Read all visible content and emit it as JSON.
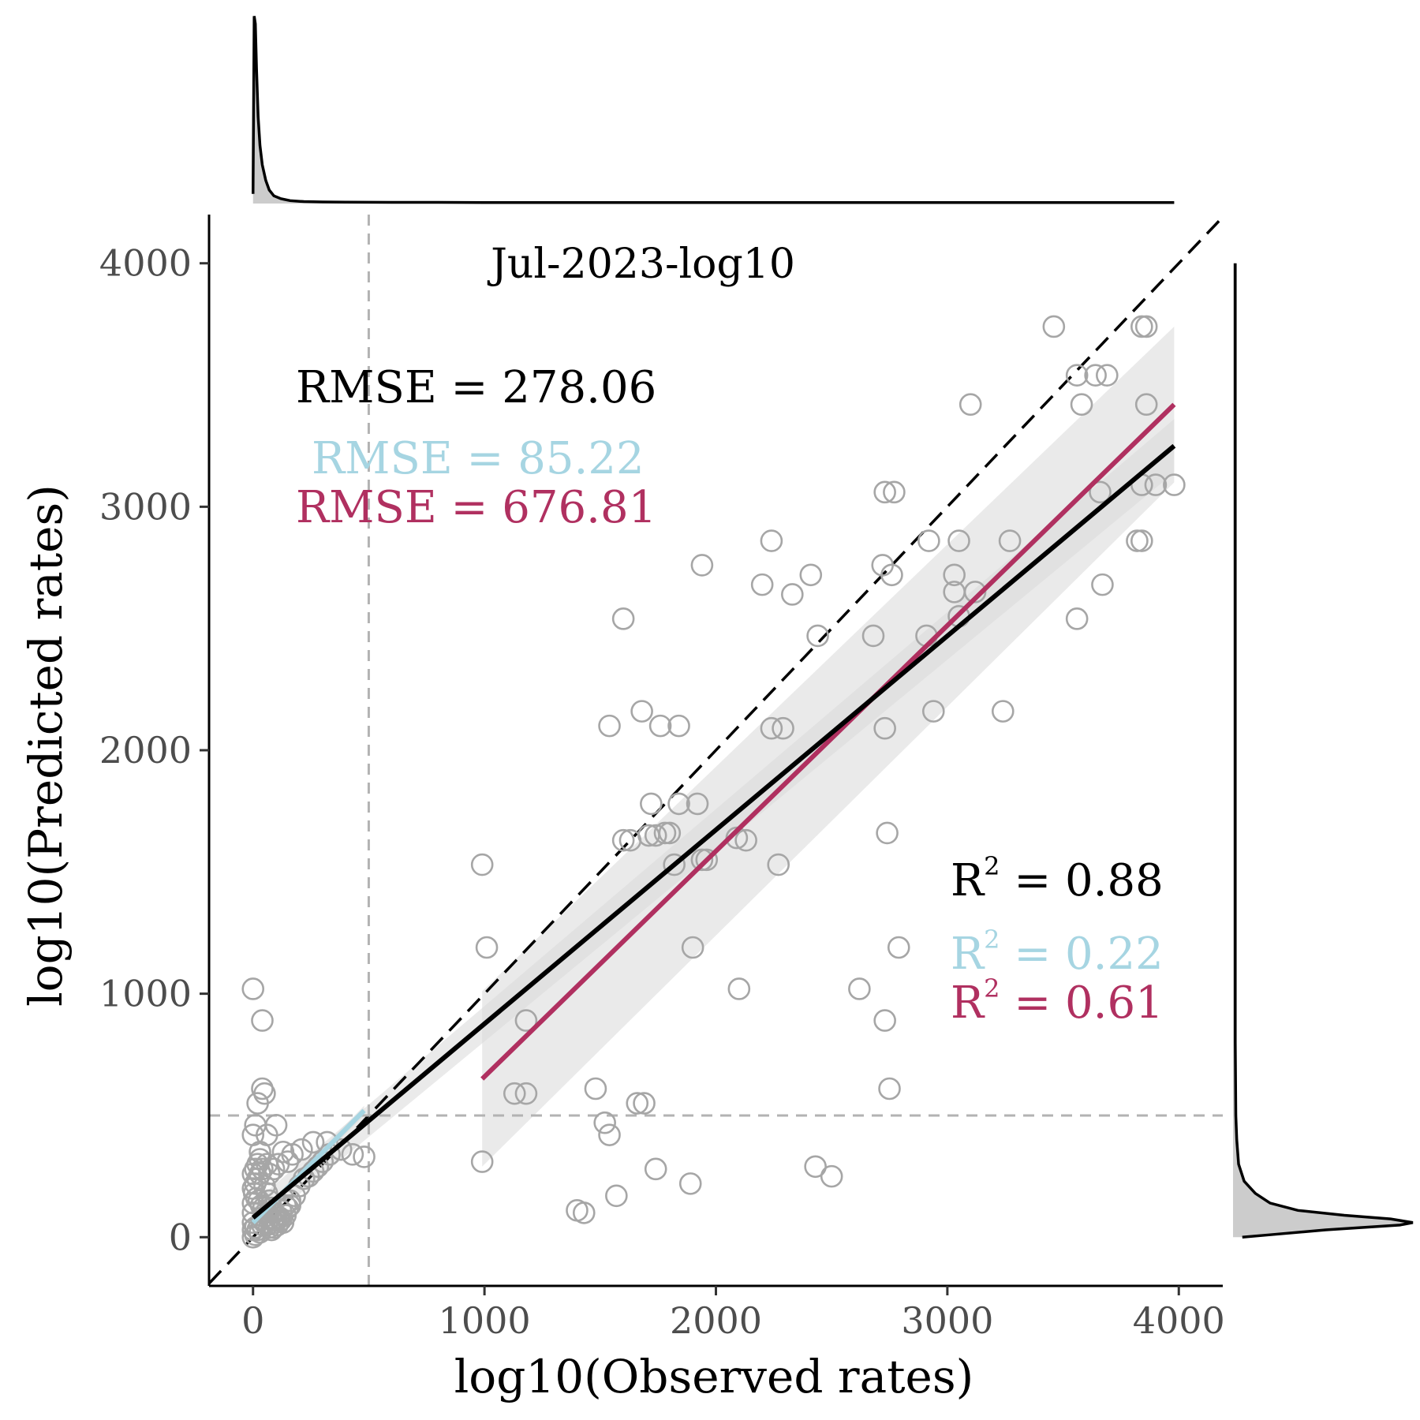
{
  "chart_data": {
    "type": "scatter",
    "title": "Jul-2023-log10",
    "xlabel": "log10(Observed rates)",
    "ylabel": "log10(Predicted rates)",
    "xlim": [
      -190,
      4190
    ],
    "ylim": [
      -200,
      4200
    ],
    "xticks": [
      0,
      1000,
      2000,
      3000,
      4000
    ],
    "yticks": [
      0,
      1000,
      2000,
      3000,
      4000
    ],
    "grid": false,
    "threshold": 500,
    "colors": {
      "points": "#a6a6a6",
      "overall": "#000000",
      "low": "#a6d5e2",
      "high": "#b03060",
      "band": "#d9d9d9",
      "density_fill": "#cccccc"
    },
    "stats": {
      "rmse_overall": "RMSE = 278.06",
      "rmse_low": "RMSE = 85.22",
      "rmse_high": "RMSE = 676.81",
      "r2_label": "R",
      "r2_exp": "2",
      "r2_overall": " = 0.88",
      "r2_low": " = 0.22",
      "r2_high": " = 0.61"
    },
    "fits": {
      "overall": {
        "x": [
          0,
          3980
        ],
        "y": [
          80,
          3250
        ]
      },
      "low": {
        "x": [
          0,
          480
        ],
        "y": [
          60,
          520
        ]
      },
      "high": {
        "x": [
          990,
          3980
        ],
        "y": [
          650,
          3420
        ]
      }
    },
    "points": [
      [
        3460,
        3740
      ],
      [
        3840,
        3740
      ],
      [
        3860,
        3740
      ],
      [
        3560,
        3540
      ],
      [
        3640,
        3540
      ],
      [
        3690,
        3540
      ],
      [
        3100,
        3420
      ],
      [
        3580,
        3420
      ],
      [
        3860,
        3420
      ],
      [
        2730,
        3060
      ],
      [
        2770,
        3060
      ],
      [
        3660,
        3060
      ],
      [
        3840,
        3090
      ],
      [
        3900,
        3090
      ],
      [
        3980,
        3090
      ],
      [
        1940,
        2760
      ],
      [
        2720,
        2760
      ],
      [
        2760,
        2720
      ],
      [
        2240,
        2860
      ],
      [
        2920,
        2860
      ],
      [
        3050,
        2860
      ],
      [
        3270,
        2860
      ],
      [
        3820,
        2860
      ],
      [
        3840,
        2860
      ],
      [
        2200,
        2680
      ],
      [
        2330,
        2640
      ],
      [
        2410,
        2720
      ],
      [
        3030,
        2720
      ],
      [
        3030,
        2650
      ],
      [
        3120,
        2650
      ],
      [
        3670,
        2680
      ],
      [
        1600,
        2540
      ],
      [
        3050,
        2550
      ],
      [
        3560,
        2540
      ],
      [
        2440,
        2470
      ],
      [
        2680,
        2470
      ],
      [
        2910,
        2470
      ],
      [
        1680,
        2160
      ],
      [
        2940,
        2160
      ],
      [
        3240,
        2160
      ],
      [
        1540,
        2100
      ],
      [
        1760,
        2100
      ],
      [
        1840,
        2100
      ],
      [
        2240,
        2090
      ],
      [
        2290,
        2090
      ],
      [
        2730,
        2090
      ],
      [
        1720,
        1780
      ],
      [
        1840,
        1780
      ],
      [
        1920,
        1780
      ],
      [
        1600,
        1630
      ],
      [
        1630,
        1630
      ],
      [
        1710,
        1650
      ],
      [
        1740,
        1650
      ],
      [
        1780,
        1660
      ],
      [
        1800,
        1660
      ],
      [
        2090,
        1640
      ],
      [
        2130,
        1630
      ],
      [
        2740,
        1660
      ],
      [
        1820,
        1530
      ],
      [
        1940,
        1550
      ],
      [
        1960,
        1550
      ],
      [
        2270,
        1530
      ],
      [
        990,
        1530
      ],
      [
        1010,
        1190
      ],
      [
        1900,
        1190
      ],
      [
        2790,
        1190
      ],
      [
        0,
        1020
      ],
      [
        2100,
        1020
      ],
      [
        2620,
        1020
      ],
      [
        1180,
        890
      ],
      [
        40,
        890
      ],
      [
        2730,
        890
      ],
      [
        1130,
        590
      ],
      [
        1180,
        590
      ],
      [
        1480,
        610
      ],
      [
        2750,
        610
      ],
      [
        40,
        610
      ],
      [
        50,
        590
      ],
      [
        1520,
        470
      ],
      [
        1540,
        420
      ],
      [
        1660,
        550
      ],
      [
        1690,
        550
      ],
      [
        20,
        550
      ],
      [
        60,
        420
      ],
      [
        100,
        460
      ],
      [
        990,
        310
      ],
      [
        1740,
        280
      ],
      [
        1890,
        220
      ],
      [
        2430,
        290
      ],
      [
        2500,
        250
      ],
      [
        1570,
        170
      ],
      [
        1400,
        110
      ],
      [
        1430,
        100
      ],
      [
        430,
        340
      ],
      [
        480,
        330
      ],
      [
        380,
        360
      ],
      [
        320,
        390
      ],
      [
        330,
        340
      ],
      [
        260,
        390
      ],
      [
        210,
        360
      ],
      [
        170,
        340
      ],
      [
        150,
        310
      ],
      [
        130,
        350
      ],
      [
        110,
        300
      ],
      [
        90,
        280
      ],
      [
        70,
        260
      ],
      [
        60,
        300
      ],
      [
        40,
        280
      ],
      [
        30,
        260
      ],
      [
        20,
        240
      ],
      [
        10,
        220
      ],
      [
        0,
        200
      ],
      [
        5,
        180
      ],
      [
        15,
        160
      ],
      [
        25,
        150
      ],
      [
        35,
        130
      ],
      [
        45,
        120
      ],
      [
        55,
        100
      ],
      [
        65,
        90
      ],
      [
        75,
        80
      ],
      [
        85,
        70
      ],
      [
        95,
        60
      ],
      [
        105,
        50
      ],
      [
        115,
        80
      ],
      [
        0,
        140
      ],
      [
        0,
        100
      ],
      [
        0,
        60
      ],
      [
        0,
        30
      ],
      [
        10,
        40
      ],
      [
        20,
        30
      ],
      [
        30,
        20
      ],
      [
        0,
        0
      ],
      [
        10,
        10
      ],
      [
        40,
        50
      ],
      [
        50,
        60
      ],
      [
        60,
        50
      ],
      [
        70,
        40
      ],
      [
        80,
        30
      ],
      [
        90,
        40
      ],
      [
        100,
        70
      ],
      [
        120,
        110
      ],
      [
        140,
        130
      ],
      [
        160,
        150
      ],
      [
        180,
        170
      ],
      [
        200,
        210
      ],
      [
        220,
        240
      ],
      [
        240,
        250
      ],
      [
        260,
        270
      ],
      [
        280,
        290
      ],
      [
        300,
        310
      ],
      [
        30,
        320
      ],
      [
        20,
        300
      ],
      [
        10,
        280
      ],
      [
        0,
        260
      ],
      [
        50,
        210
      ],
      [
        60,
        180
      ],
      [
        70,
        150
      ],
      [
        80,
        120
      ],
      [
        90,
        100
      ],
      [
        100,
        90
      ],
      [
        110,
        80
      ],
      [
        120,
        70
      ],
      [
        130,
        60
      ],
      [
        140,
        90
      ],
      [
        150,
        120
      ],
      [
        160,
        130
      ],
      [
        0,
        420
      ],
      [
        10,
        460
      ],
      [
        30,
        350
      ]
    ],
    "top_density": [
      [
        0,
        0.05
      ],
      [
        5,
        0.97
      ],
      [
        10,
        0.93
      ],
      [
        15,
        0.7
      ],
      [
        22,
        0.45
      ],
      [
        30,
        0.3
      ],
      [
        40,
        0.2
      ],
      [
        55,
        0.12
      ],
      [
        70,
        0.07
      ],
      [
        90,
        0.04
      ],
      [
        120,
        0.025
      ],
      [
        160,
        0.015
      ],
      [
        220,
        0.01
      ],
      [
        300,
        0.008
      ],
      [
        400,
        0.007
      ],
      [
        600,
        0.006
      ],
      [
        800,
        0.006
      ],
      [
        1000,
        0.005
      ],
      [
        1400,
        0.005
      ],
      [
        1800,
        0.005
      ],
      [
        2200,
        0.005
      ],
      [
        2600,
        0.005
      ],
      [
        3000,
        0.005
      ],
      [
        3400,
        0.005
      ],
      [
        3700,
        0.005
      ],
      [
        3980,
        0.005
      ]
    ],
    "right_density": [
      [
        0,
        0.05
      ],
      [
        10,
        0.2
      ],
      [
        30,
        0.5
      ],
      [
        50,
        0.9
      ],
      [
        60,
        0.97
      ],
      [
        75,
        0.85
      ],
      [
        90,
        0.6
      ],
      [
        110,
        0.35
      ],
      [
        140,
        0.2
      ],
      [
        180,
        0.12
      ],
      [
        230,
        0.06
      ],
      [
        300,
        0.03
      ],
      [
        400,
        0.02
      ],
      [
        500,
        0.015
      ],
      [
        800,
        0.012
      ],
      [
        1200,
        0.012
      ],
      [
        1600,
        0.012
      ],
      [
        2000,
        0.012
      ],
      [
        2400,
        0.012
      ],
      [
        2800,
        0.012
      ],
      [
        3200,
        0.012
      ],
      [
        3600,
        0.012
      ],
      [
        4000,
        0.012
      ]
    ]
  }
}
